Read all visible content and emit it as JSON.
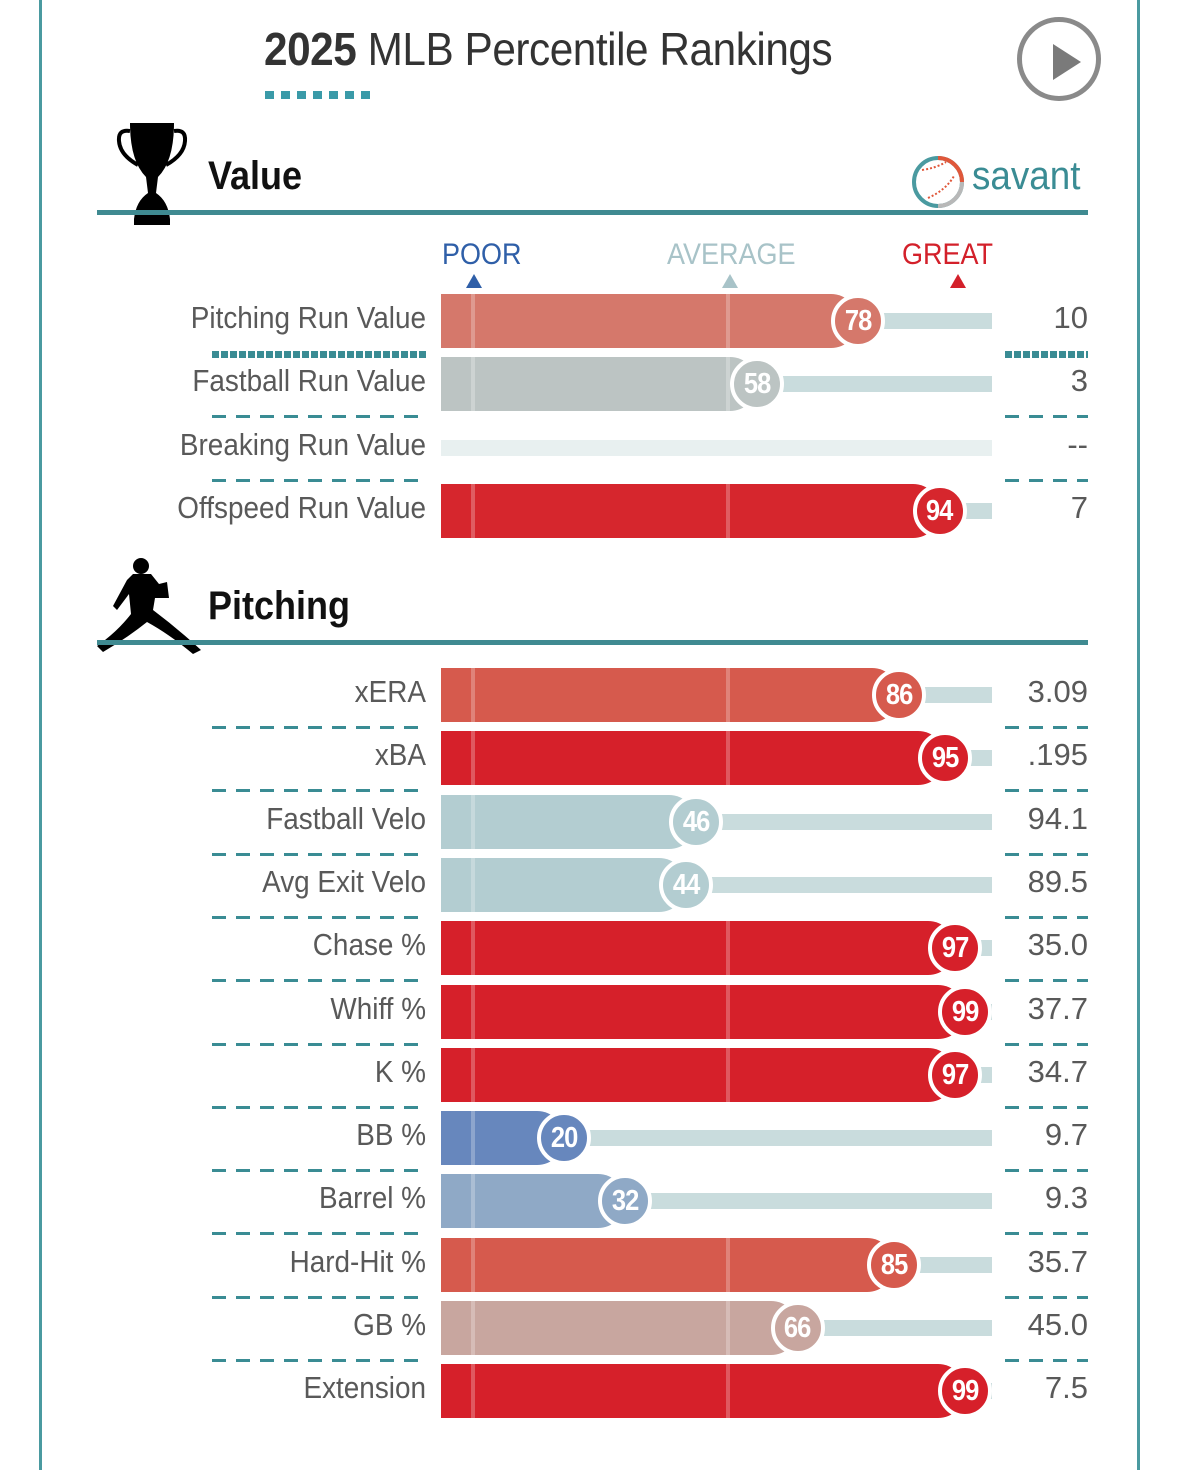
{
  "header": {
    "title_year": "2025",
    "title_rest": " MLB Percentile Rankings",
    "play_button": "play-icon"
  },
  "brand": {
    "label": "savant",
    "icon": "baseball-icon"
  },
  "scale": {
    "poor": "POOR",
    "average": "AVERAGE",
    "great": "GREAT",
    "colors": {
      "poor": "#2f5fa8",
      "average": "#a8c3c8",
      "great": "#d3202a"
    }
  },
  "sections": [
    {
      "title": "Value",
      "icon": "trophy-icon"
    },
    {
      "title": "Pitching",
      "icon": "pitcher-icon"
    }
  ],
  "chart_data": {
    "type": "bar",
    "title": "2025 MLB Percentile Rankings",
    "xlabel": "Percentile",
    "xlim": [
      0,
      100
    ],
    "scale_labels": [
      "POOR",
      "AVERAGE",
      "GREAT"
    ],
    "groups": [
      {
        "name": "Value",
        "rows": [
          {
            "label": "Pitching Run Value",
            "percentile": 78,
            "value": "10",
            "color": "#d5786b"
          },
          {
            "label": "Fastball Run Value",
            "percentile": 58,
            "value": "3",
            "color": "#bcc4c3"
          },
          {
            "label": "Breaking Run Value",
            "percentile": null,
            "value": "--",
            "color": null
          },
          {
            "label": "Offspeed Run Value",
            "percentile": 94,
            "value": "7",
            "color": "#d6262d"
          }
        ]
      },
      {
        "name": "Pitching",
        "rows": [
          {
            "label": "xERA",
            "percentile": 86,
            "value": "3.09",
            "color": "#d65a4d"
          },
          {
            "label": "xBA",
            "percentile": 95,
            "value": ".195",
            "color": "#d6202a"
          },
          {
            "label": "Fastball Velo",
            "percentile": 46,
            "value": "94.1",
            "color": "#b3cdd1"
          },
          {
            "label": "Avg Exit Velo",
            "percentile": 44,
            "value": "89.5",
            "color": "#b3cdd1"
          },
          {
            "label": "Chase %",
            "percentile": 97,
            "value": "35.0",
            "color": "#d6202a"
          },
          {
            "label": "Whiff %",
            "percentile": 99,
            "value": "37.7",
            "color": "#d6202a"
          },
          {
            "label": "K %",
            "percentile": 97,
            "value": "34.7",
            "color": "#d6202a"
          },
          {
            "label": "BB %",
            "percentile": 20,
            "value": "9.7",
            "color": "#6787bd"
          },
          {
            "label": "Barrel %",
            "percentile": 32,
            "value": "9.3",
            "color": "#8fa9c6"
          },
          {
            "label": "Hard-Hit %",
            "percentile": 85,
            "value": "35.7",
            "color": "#d65a4d"
          },
          {
            "label": "GB %",
            "percentile": 66,
            "value": "45.0",
            "color": "#c8a69f"
          },
          {
            "label": "Extension",
            "percentile": 99,
            "value": "7.5",
            "color": "#d6202a"
          }
        ]
      }
    ]
  }
}
